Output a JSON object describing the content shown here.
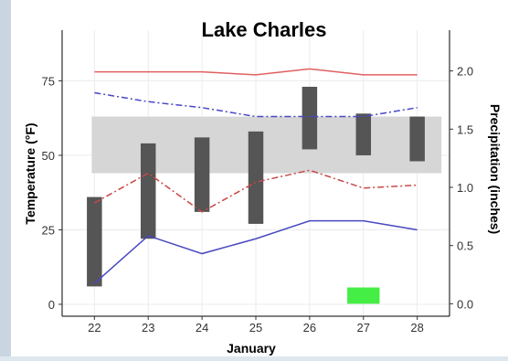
{
  "chart_data": {
    "type": "bar",
    "title": "Lake Charles",
    "xlabel": "January",
    "ylabel_left": "Temperature (°F)",
    "ylabel_right": "Precipitation (inches)",
    "x": [
      22,
      23,
      24,
      25,
      26,
      27,
      28
    ],
    "x_tick_labels": [
      "22",
      "23",
      "24",
      "25",
      "26",
      "27",
      "28"
    ],
    "xlim": [
      21.4,
      28.6
    ],
    "ylim_left": [
      -4,
      92
    ],
    "ylim_right": [
      -0.107,
      2.35
    ],
    "y_left_ticks": [
      0,
      25,
      50,
      75
    ],
    "y_right_ticks": [
      0.0,
      0.5,
      1.0,
      1.5,
      2.0
    ],
    "y_right_tick_labels": [
      "0.0",
      "0.5",
      "1.0",
      "1.5",
      "2.0"
    ],
    "grid": true,
    "temperature_range_bars": [
      {
        "x": 22,
        "low": 6,
        "high": 36
      },
      {
        "x": 23,
        "low": 22,
        "high": 54
      },
      {
        "x": 24,
        "low": 31,
        "high": 56
      },
      {
        "x": 25,
        "low": 27,
        "high": 58
      },
      {
        "x": 26,
        "low": 52,
        "high": 73
      },
      {
        "x": 27,
        "low": 50,
        "high": 64
      },
      {
        "x": 28,
        "low": 48,
        "high": 63
      }
    ],
    "normal_band": {
      "low": 44,
      "high": 63
    },
    "series": [
      {
        "style": "solid",
        "color": "#e06060",
        "values": [
          78,
          78,
          78,
          77,
          79,
          77,
          77
        ]
      },
      {
        "style": "dashdot",
        "color": "#4848c8",
        "values": [
          71,
          68,
          66,
          63,
          63,
          63,
          66
        ]
      },
      {
        "style": "dashdot",
        "color": "#c84848",
        "values": [
          34,
          44,
          31,
          41,
          45,
          39,
          40
        ]
      },
      {
        "style": "solid",
        "color": "#4848c0",
        "values": [
          7,
          23,
          17,
          22,
          28,
          28,
          25
        ]
      }
    ],
    "precipitation": [
      {
        "x": 27,
        "value": 0.14
      }
    ],
    "colors": {
      "bar": "#555555",
      "band": "#d6d6d6",
      "precip": "#44ee44",
      "panel": "#ffffff",
      "grid": "#ebebeb"
    }
  }
}
